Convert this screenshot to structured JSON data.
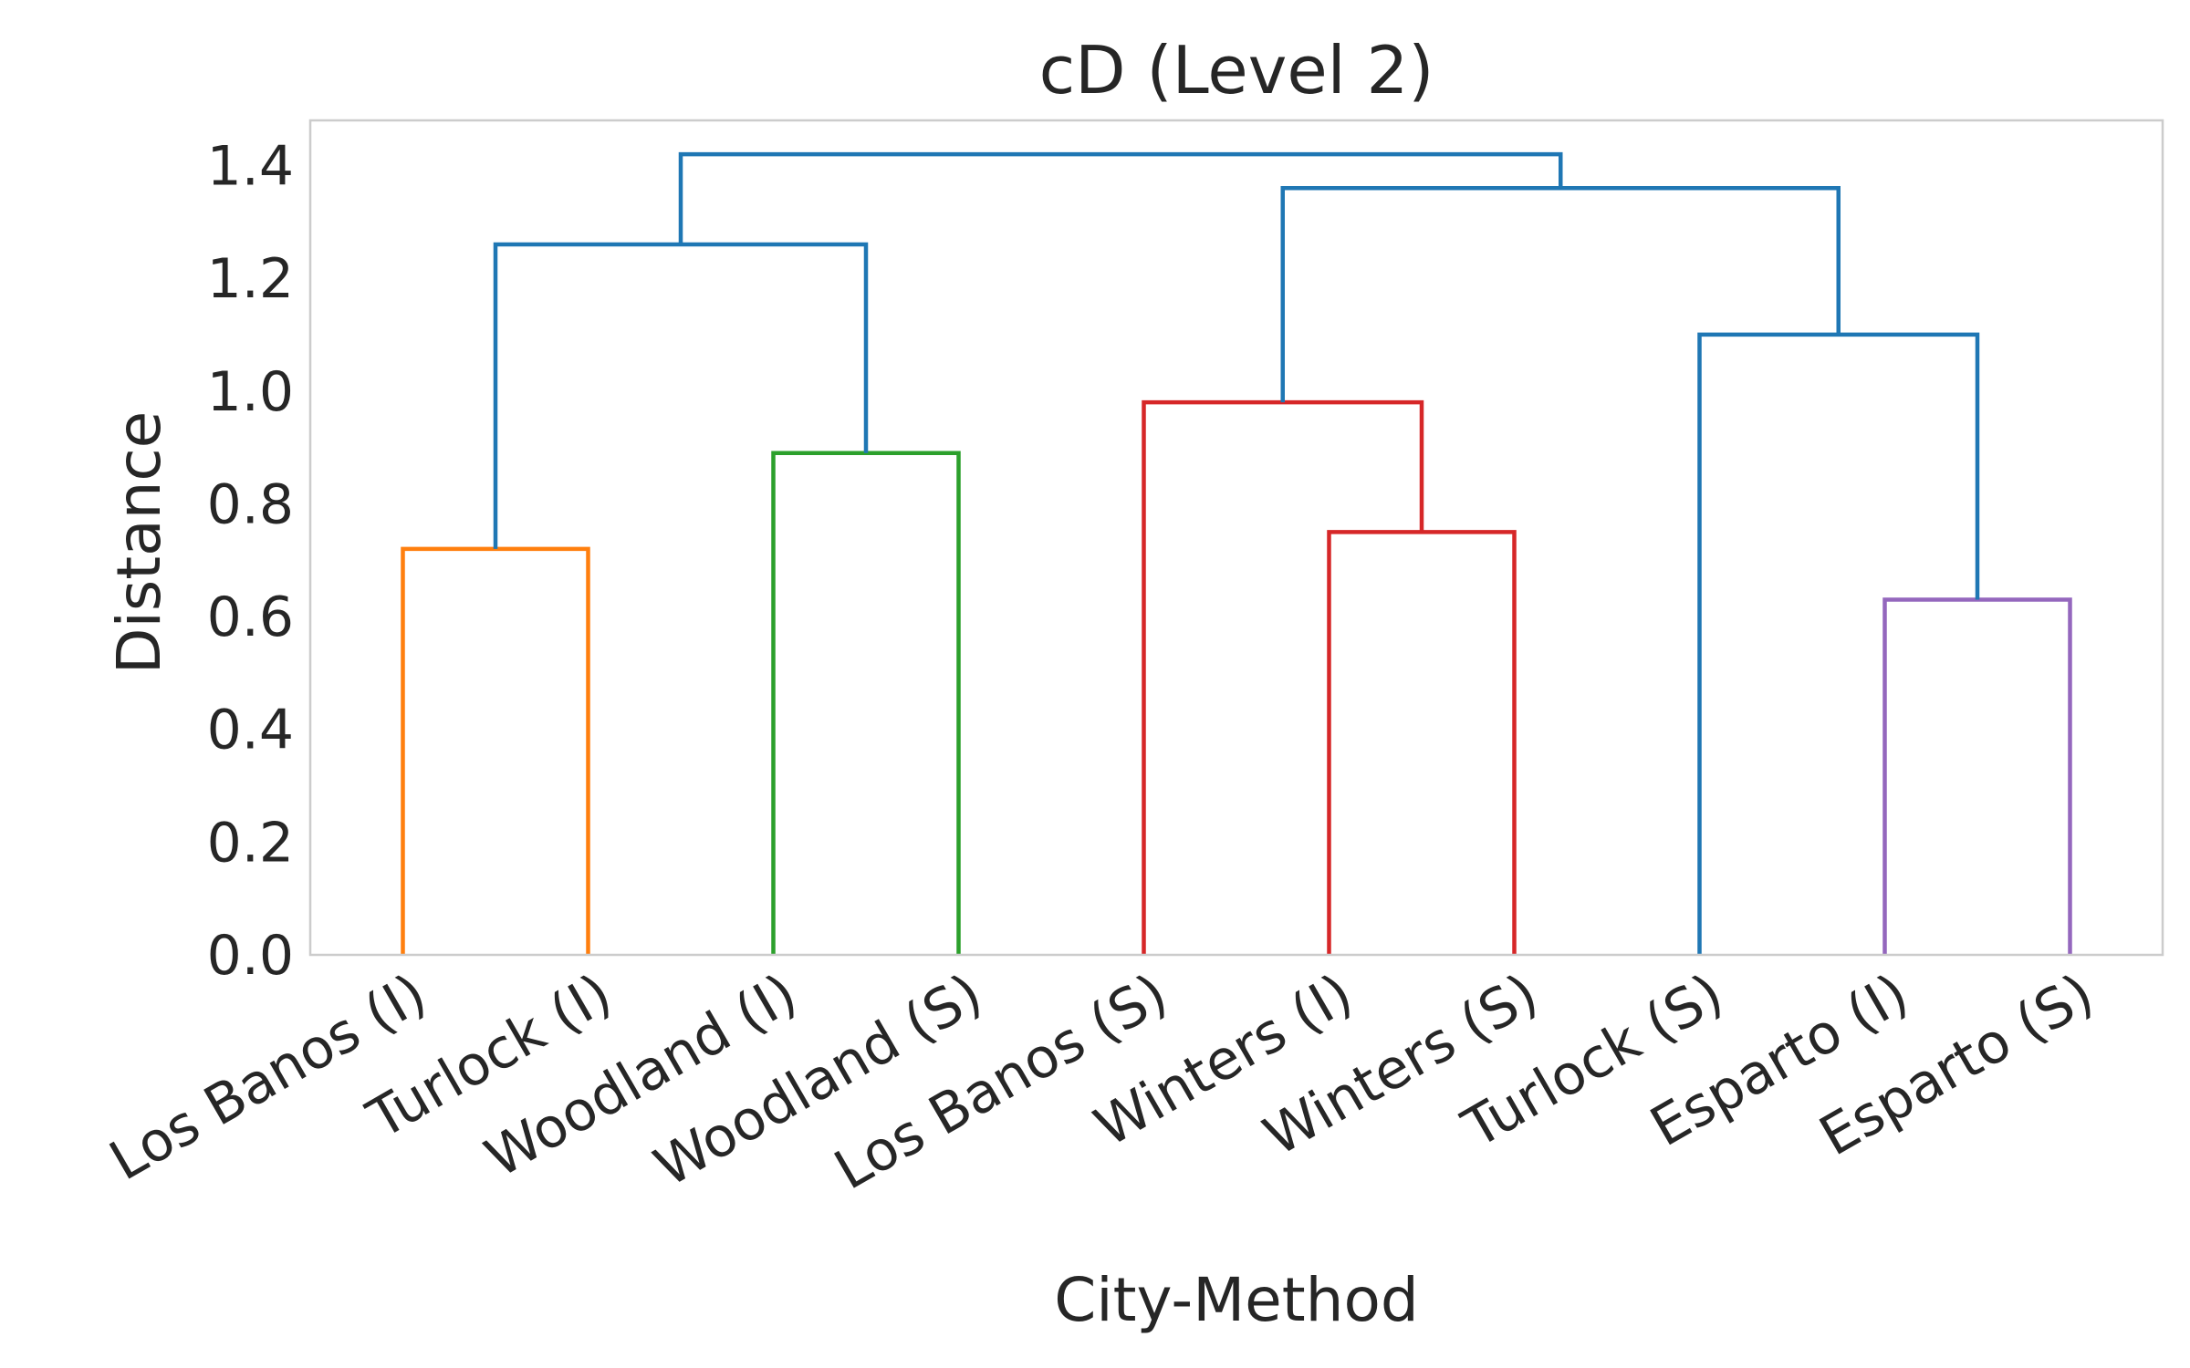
{
  "chart_data": {
    "type": "dendrogram",
    "title": "cD (Level 2)",
    "xlabel": "City-Method",
    "ylabel": "Distance",
    "ylim": [
      0,
      1.48
    ],
    "yticks": [
      "0.0",
      "0.2",
      "0.4",
      "0.6",
      "0.8",
      "1.0",
      "1.2",
      "1.4"
    ],
    "grid": false,
    "leaves": [
      "Los Banos (I)",
      "Turlock (I)",
      "Woodland (I)",
      "Woodland (S)",
      "Los Banos (S)",
      "Winters (I)",
      "Winters (S)",
      "Turlock (S)",
      "Esparto (I)",
      "Esparto (S)"
    ],
    "links": [
      {
        "name": "link-los-banos-i-turlock-i",
        "left": "Los Banos (I)",
        "right": "Turlock (I)",
        "height": 0.72,
        "color": "#ff7f0e"
      },
      {
        "name": "link-woodland-i-woodland-s",
        "left": "Woodland (I)",
        "right": "Woodland (S)",
        "height": 0.89,
        "color": "#2ca02c"
      },
      {
        "name": "link-winters-i-winters-s",
        "left": "Winters (I)",
        "right": "Winters (S)",
        "height": 0.75,
        "color": "#d62728"
      },
      {
        "name": "link-los-banos-s-winters",
        "left": "Los Banos (S)",
        "right": "link-winters-i-winters-s",
        "height": 0.98,
        "color": "#d62728"
      },
      {
        "name": "link-esparto-i-esparto-s",
        "left": "Esparto (I)",
        "right": "Esparto (S)",
        "height": 0.63,
        "color": "#9467bd"
      },
      {
        "name": "link-turlock-s-esparto",
        "left": "Turlock (S)",
        "right": "link-esparto-i-esparto-s",
        "height": 1.1,
        "color": "#1f77b4"
      },
      {
        "name": "link-losbanos-turlock-woodland",
        "left": "link-los-banos-i-turlock-i",
        "right": "link-woodland-i-woodland-s",
        "height": 1.26,
        "color": "#1f77b4"
      },
      {
        "name": "link-winters-esparto-group",
        "left": "link-los-banos-s-winters",
        "right": "link-turlock-s-esparto",
        "height": 1.36,
        "color": "#1f77b4"
      },
      {
        "name": "link-root",
        "left": "link-losbanos-turlock-woodland",
        "right": "link-winters-esparto-group",
        "height": 1.42,
        "color": "#1f77b4"
      }
    ]
  }
}
